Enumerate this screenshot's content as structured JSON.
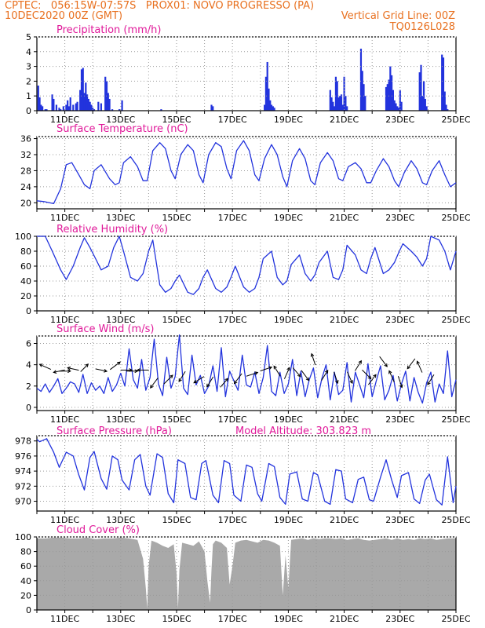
{
  "header": {
    "line1_left": "CPTEC:   056:15W-07:57S   PROX01: NOVO PROGRESSO (PA)",
    "line2_left": "10DEC2020 00Z (GMT)",
    "line2_right": "Vertical Grid Line: 00Z",
    "line3_right": "TQ0126L028",
    "model_altitude": "Model Altitude: 303.823 m"
  },
  "colors": {
    "header": "#e8701f",
    "panel_title": "#e01a9a",
    "series": "#2233dd",
    "cloud": "#a9a9a9",
    "grid": "#999999",
    "arrow": "#000000"
  },
  "x_axis": {
    "labels": [
      "11DEC",
      "13DEC",
      "15DEC",
      "17DEC",
      "19DEC",
      "21DEC",
      "23DEC",
      "25DEC"
    ],
    "label_days": [
      11,
      13,
      15,
      17,
      19,
      21,
      23,
      25
    ]
  },
  "chart_data": [
    {
      "type": "bar",
      "title": "Precipitation (mm/h)",
      "ylim": [
        0,
        5
      ],
      "yticks": [
        0,
        1,
        2,
        3,
        4,
        5
      ],
      "x_unit": "day of Dec 2020",
      "x": [
        10.05,
        10.1,
        10.15,
        10.2,
        10.3,
        10.35,
        10.55,
        10.6,
        10.7,
        10.8,
        10.85,
        10.95,
        11.05,
        11.1,
        11.15,
        11.2,
        11.3,
        11.4,
        11.45,
        11.55,
        11.6,
        11.65,
        11.7,
        11.75,
        11.8,
        11.85,
        11.9,
        11.95,
        12.0,
        12.05,
        12.2,
        12.3,
        12.45,
        12.5,
        12.55,
        12.6,
        12.7,
        12.95,
        13.05,
        14.45,
        16.25,
        16.3,
        18.15,
        18.2,
        18.25,
        18.3,
        18.35,
        18.4,
        18.45,
        18.5,
        20.5,
        20.55,
        20.6,
        20.65,
        20.7,
        20.75,
        20.8,
        20.85,
        20.9,
        20.95,
        21.0,
        21.05,
        21.1,
        21.6,
        21.65,
        21.7,
        21.75,
        22.5,
        22.55,
        22.6,
        22.65,
        22.7,
        22.75,
        22.8,
        22.85,
        22.9,
        22.95,
        23.0,
        23.05,
        23.7,
        23.75,
        23.8,
        23.85,
        23.9,
        23.95,
        24.5,
        24.55,
        24.6,
        24.65,
        24.7
      ],
      "values": [
        1.7,
        0.9,
        0.4,
        0.3,
        0.1,
        0.1,
        1.1,
        0.8,
        0.4,
        0.2,
        0.1,
        0.3,
        0.4,
        0.7,
        0.3,
        0.9,
        0.4,
        0.5,
        0.6,
        1.4,
        2.8,
        2.9,
        1.2,
        1.9,
        1.1,
        0.8,
        0.6,
        0.4,
        0.2,
        0.1,
        0.6,
        0.5,
        2.3,
        2.0,
        1.2,
        0.8,
        0.1,
        0.1,
        0.7,
        0.1,
        0.4,
        0.3,
        0.4,
        2.3,
        3.3,
        1.5,
        0.7,
        0.4,
        0.3,
        0.2,
        1.4,
        0.9,
        0.6,
        0.3,
        2.3,
        2.0,
        0.9,
        1.0,
        1.1,
        0.4,
        2.3,
        1.0,
        0.3,
        4.2,
        2.7,
        1.8,
        1.0,
        1.6,
        1.8,
        2.1,
        3.0,
        2.4,
        1.4,
        0.7,
        0.5,
        0.3,
        0.2,
        1.4,
        0.6,
        2.6,
        3.1,
        1.0,
        2.0,
        0.8,
        0.3,
        3.8,
        3.6,
        1.3,
        0.4,
        0.1
      ]
    },
    {
      "type": "line",
      "title": "Surface Temperature (nC)",
      "ylim": [
        18.5,
        36.5
      ],
      "yticks": [
        20,
        24,
        28,
        32,
        36
      ],
      "x_unit": "day of Dec 2020",
      "x": [
        10.0,
        10.25,
        10.6,
        10.85,
        11.05,
        11.25,
        11.5,
        11.7,
        11.9,
        12.05,
        12.3,
        12.6,
        12.8,
        12.95,
        13.1,
        13.35,
        13.6,
        13.8,
        13.95,
        14.15,
        14.4,
        14.6,
        14.8,
        14.95,
        15.15,
        15.4,
        15.6,
        15.8,
        15.95,
        16.15,
        16.4,
        16.6,
        16.8,
        16.95,
        17.15,
        17.4,
        17.6,
        17.8,
        17.95,
        18.15,
        18.4,
        18.6,
        18.8,
        18.95,
        19.15,
        19.4,
        19.6,
        19.8,
        19.95,
        20.15,
        20.4,
        20.6,
        20.8,
        20.95,
        21.15,
        21.4,
        21.6,
        21.8,
        21.95,
        22.15,
        22.4,
        22.6,
        22.8,
        22.95,
        23.15,
        23.4,
        23.6,
        23.8,
        23.95,
        24.15,
        24.4,
        24.6,
        24.8,
        25.0
      ],
      "values": [
        20.5,
        20.3,
        19.8,
        23.5,
        29.5,
        30.0,
        27.0,
        24.5,
        23.5,
        28.0,
        29.5,
        26.0,
        24.5,
        25.0,
        30.0,
        31.5,
        29.0,
        25.5,
        25.5,
        33.0,
        35.0,
        33.5,
        28.0,
        26.0,
        32.0,
        34.5,
        33.0,
        27.0,
        25.0,
        32.0,
        35.0,
        34.0,
        28.5,
        26.0,
        33.0,
        35.5,
        33.0,
        27.0,
        25.5,
        31.0,
        34.5,
        32.0,
        26.5,
        24.0,
        30.5,
        33.5,
        31.0,
        25.5,
        24.5,
        30.0,
        32.5,
        30.5,
        26.0,
        25.5,
        29.0,
        30.0,
        28.5,
        25.0,
        25.0,
        28.0,
        31.0,
        29.0,
        25.5,
        24.0,
        27.5,
        30.5,
        28.5,
        25.0,
        24.5,
        28.0,
        30.5,
        27.0,
        24.0,
        25.0
      ]
    },
    {
      "type": "line",
      "title": "Relative Humidity (%)",
      "ylim": [
        0,
        100
      ],
      "yticks": [
        0,
        20,
        40,
        60,
        80,
        100
      ],
      "x_unit": "day of Dec 2020",
      "x": [
        10.0,
        10.3,
        10.55,
        10.85,
        11.05,
        11.3,
        11.55,
        11.7,
        11.9,
        12.1,
        12.3,
        12.55,
        12.75,
        12.95,
        13.1,
        13.35,
        13.6,
        13.8,
        14.0,
        14.15,
        14.4,
        14.6,
        14.8,
        14.95,
        15.1,
        15.4,
        15.6,
        15.8,
        15.95,
        16.1,
        16.4,
        16.6,
        16.8,
        16.95,
        17.1,
        17.4,
        17.6,
        17.8,
        17.95,
        18.1,
        18.4,
        18.6,
        18.8,
        18.95,
        19.1,
        19.4,
        19.6,
        19.8,
        19.95,
        20.1,
        20.4,
        20.6,
        20.8,
        20.95,
        21.1,
        21.4,
        21.6,
        21.8,
        21.95,
        22.1,
        22.4,
        22.6,
        22.8,
        22.95,
        23.1,
        23.4,
        23.6,
        23.8,
        23.95,
        24.1,
        24.4,
        24.6,
        24.8,
        25.0
      ],
      "values": [
        100,
        100,
        80,
        55,
        42,
        60,
        85,
        98,
        85,
        70,
        55,
        60,
        85,
        100,
        80,
        45,
        40,
        50,
        80,
        95,
        35,
        25,
        30,
        40,
        48,
        25,
        22,
        30,
        45,
        55,
        30,
        25,
        32,
        45,
        60,
        32,
        25,
        30,
        45,
        70,
        80,
        45,
        35,
        40,
        62,
        75,
        50,
        40,
        48,
        65,
        80,
        45,
        42,
        55,
        88,
        75,
        55,
        50,
        70,
        85,
        50,
        55,
        65,
        78,
        90,
        80,
        72,
        60,
        70,
        100,
        95,
        80,
        55,
        80
      ]
    },
    {
      "type": "line",
      "title": "Surface Wind (m/s)",
      "ylim": [
        -0.3,
        6.7
      ],
      "yticks": [
        0,
        2,
        4,
        6
      ],
      "x_unit": "day of Dec 2020",
      "x": [
        10.0,
        10.15,
        10.3,
        10.45,
        10.6,
        10.75,
        10.9,
        11.05,
        11.2,
        11.35,
        11.5,
        11.65,
        11.8,
        11.95,
        12.1,
        12.25,
        12.4,
        12.55,
        12.7,
        12.85,
        13.0,
        13.15,
        13.3,
        13.45,
        13.6,
        13.75,
        13.9,
        14.05,
        14.2,
        14.35,
        14.5,
        14.65,
        14.8,
        14.95,
        15.1,
        15.25,
        15.4,
        15.55,
        15.7,
        15.85,
        16.0,
        16.15,
        16.3,
        16.45,
        16.6,
        16.75,
        16.9,
        17.05,
        17.2,
        17.35,
        17.5,
        17.65,
        17.8,
        17.95,
        18.1,
        18.25,
        18.4,
        18.55,
        18.7,
        18.85,
        19.0,
        19.15,
        19.3,
        19.45,
        19.6,
        19.75,
        19.9,
        20.05,
        20.2,
        20.35,
        20.5,
        20.65,
        20.8,
        20.95,
        21.1,
        21.25,
        21.4,
        21.55,
        21.7,
        21.85,
        22.0,
        22.15,
        22.3,
        22.45,
        22.6,
        22.75,
        22.9,
        23.05,
        23.2,
        23.35,
        23.5,
        23.65,
        23.8,
        23.95,
        24.1,
        24.25,
        24.4,
        24.55,
        24.7,
        24.85,
        25.0
      ],
      "values": [
        1.8,
        1.5,
        2.2,
        1.4,
        2.0,
        2.7,
        1.3,
        1.8,
        2.4,
        2.2,
        1.4,
        3.1,
        1.3,
        2.3,
        1.6,
        2.0,
        1.3,
        2.8,
        1.5,
        2.1,
        3.2,
        2.0,
        5.5,
        2.6,
        1.8,
        4.5,
        1.6,
        2.8,
        6.4,
        2.2,
        1.1,
        4.7,
        1.8,
        2.9,
        6.8,
        1.8,
        1.2,
        4.9,
        2.1,
        3.0,
        1.3,
        2.0,
        3.9,
        1.5,
        5.6,
        1.0,
        3.4,
        2.5,
        1.6,
        4.9,
        2.1,
        1.9,
        3.3,
        1.3,
        2.8,
        5.8,
        1.5,
        1.1,
        3.3,
        1.3,
        2.2,
        4.5,
        1.1,
        3.4,
        1.0,
        2.6,
        3.7,
        0.9,
        2.7,
        4.0,
        0.7,
        3.3,
        1.2,
        1.6,
        4.2,
        0.5,
        3.3,
        2.1,
        0.9,
        4.1,
        1.0,
        2.5,
        3.9,
        0.7,
        1.6,
        3.0,
        0.6,
        2.2,
        3.4,
        0.6,
        2.8,
        1.4,
        0.4,
        2.3,
        3.3,
        0.5,
        2.2,
        1.3,
        5.3,
        1.0,
        2.6
      ]
    },
    {
      "type": "line",
      "title": "Surface Pressure (hPa)",
      "ylim": [
        968.7,
        978.7
      ],
      "yticks": [
        970,
        972,
        974,
        976,
        978
      ],
      "x_unit": "day of Dec 2020",
      "x": [
        10.0,
        10.1,
        10.35,
        10.6,
        10.8,
        11.05,
        11.3,
        11.5,
        11.7,
        11.9,
        12.05,
        12.3,
        12.5,
        12.7,
        12.9,
        13.05,
        13.3,
        13.5,
        13.7,
        13.9,
        14.05,
        14.3,
        14.5,
        14.7,
        14.9,
        15.05,
        15.3,
        15.5,
        15.7,
        15.9,
        16.05,
        16.3,
        16.5,
        16.7,
        16.9,
        17.05,
        17.3,
        17.5,
        17.7,
        17.9,
        18.05,
        18.3,
        18.5,
        18.7,
        18.9,
        19.05,
        19.3,
        19.5,
        19.7,
        19.9,
        20.05,
        20.3,
        20.5,
        20.7,
        20.9,
        21.05,
        21.3,
        21.5,
        21.7,
        21.9,
        22.05,
        22.3,
        22.5,
        22.7,
        22.9,
        23.05,
        23.3,
        23.5,
        23.7,
        23.9,
        24.05,
        24.3,
        24.5,
        24.7,
        24.9,
        25.0
      ],
      "values": [
        978.2,
        977.9,
        978.3,
        976.5,
        974.5,
        976.5,
        976.0,
        973.5,
        971.5,
        975.8,
        976.6,
        973.0,
        971.6,
        976.0,
        975.5,
        972.8,
        971.5,
        975.5,
        976.2,
        972.0,
        970.8,
        976.3,
        975.8,
        971.0,
        969.8,
        975.5,
        975.0,
        970.5,
        970.2,
        975.0,
        975.4,
        970.8,
        969.8,
        975.4,
        975.0,
        970.8,
        970.0,
        974.8,
        974.5,
        971.0,
        970.0,
        975.0,
        974.6,
        970.5,
        969.6,
        973.6,
        973.9,
        970.3,
        970.0,
        973.8,
        973.5,
        970.0,
        969.6,
        974.2,
        974.0,
        970.3,
        969.8,
        972.9,
        973.2,
        970.2,
        970.0,
        973.2,
        975.5,
        972.8,
        970.5,
        973.4,
        973.8,
        970.3,
        969.7,
        972.8,
        973.6,
        970.2,
        969.5,
        975.9,
        969.8,
        972.0
      ]
    },
    {
      "type": "area",
      "title": "Cloud Cover (%)",
      "ylim": [
        0,
        100
      ],
      "yticks": [
        0,
        20,
        40,
        60,
        80,
        100
      ],
      "x_unit": "day of Dec 2020",
      "x": [
        10.0,
        10.3,
        10.6,
        10.9,
        11.2,
        11.5,
        11.8,
        12.1,
        12.4,
        12.7,
        13.0,
        13.3,
        13.6,
        13.8,
        13.9,
        13.95,
        14.0,
        14.1,
        14.3,
        14.5,
        14.7,
        14.9,
        15.0,
        15.05,
        15.1,
        15.2,
        15.4,
        15.6,
        15.8,
        16.0,
        16.1,
        16.2,
        16.25,
        16.3,
        16.4,
        16.6,
        16.8,
        16.9,
        17.0,
        17.1,
        17.3,
        17.5,
        17.7,
        17.9,
        18.1,
        18.3,
        18.5,
        18.7,
        18.8,
        18.9,
        19.0,
        19.1,
        19.3,
        19.5,
        19.7,
        19.9,
        20.1,
        20.3,
        20.5,
        20.7,
        20.9,
        21.1,
        21.3,
        21.5,
        21.7,
        21.9,
        22.1,
        22.3,
        22.5,
        22.7,
        22.9,
        23.1,
        23.3,
        23.5,
        23.7,
        23.9,
        24.1,
        24.3,
        24.5,
        24.7,
        24.9,
        25.0
      ],
      "values": [
        98,
        98,
        99,
        99,
        98,
        98,
        99,
        97,
        98,
        98,
        99,
        98,
        96,
        70,
        30,
        2,
        60,
        95,
        92,
        88,
        85,
        90,
        50,
        2,
        55,
        92,
        90,
        88,
        94,
        80,
        40,
        10,
        55,
        90,
        95,
        92,
        85,
        35,
        60,
        92,
        95,
        96,
        94,
        92,
        96,
        95,
        92,
        88,
        20,
        75,
        30,
        96,
        97,
        98,
        96,
        98,
        97,
        98,
        98,
        97,
        98,
        96,
        97,
        98,
        96,
        95,
        96,
        97,
        98,
        96,
        98,
        96,
        97,
        96,
        98,
        97,
        98,
        96,
        97,
        98,
        98,
        98
      ]
    },
    {
      "type": "vector",
      "title": "Surface Wind direction arrows",
      "note": "unit vectors (u, v) at arrow positions",
      "x": [
        10.3,
        10.8,
        11.0,
        11.3,
        11.7,
        12.3,
        12.8,
        13.2,
        13.4,
        13.8,
        14.2,
        14.7,
        15.2,
        15.8,
        16.2,
        16.7,
        17.2,
        17.7,
        18.2,
        18.6,
        18.95,
        19.3,
        19.6,
        19.9,
        20.3,
        20.7,
        21.2,
        21.5,
        21.8,
        22.0,
        22.4,
        22.7,
        23.0,
        23.4,
        23.7,
        24.1
      ],
      "y": [
        3.8,
        3.4,
        3.4,
        3.6,
        3.7,
        3.5,
        3.9,
        3.5,
        3.4,
        3.5,
        2.3,
        2.6,
        2.9,
        2.6,
        2.4,
        2.3,
        2.7,
        3.1,
        3.6,
        3.4,
        3.2,
        3.3,
        3.0,
        4.5,
        3.0,
        2.8,
        2.8,
        3.9,
        3.1,
        2.6,
        4.3,
        2.9,
        2.4,
        4.1,
        3.8,
        2.6
      ],
      "u": [
        -0.9,
        -0.9,
        0.9,
        -0.9,
        0.6,
        0.9,
        0.8,
        0.9,
        0.9,
        -0.9,
        -0.6,
        0.7,
        -0.5,
        -0.8,
        -0.5,
        0.6,
        -0.6,
        0.9,
        0.9,
        -0.5,
        0.4,
        0.6,
        0.6,
        -0.3,
        0.5,
        0.3,
        0.4,
        0.5,
        0.7,
        0.6,
        0.6,
        -0.4,
        0.3,
        -0.6,
        -0.4,
        -0.5
      ],
      "v": [
        0.4,
        -0.2,
        0.0,
        0.2,
        0.6,
        -0.2,
        0.6,
        0.0,
        0.0,
        0.0,
        -0.8,
        0.7,
        -0.8,
        -0.5,
        -0.8,
        0.7,
        -0.8,
        0.3,
        0.3,
        0.8,
        0.9,
        -0.7,
        -0.8,
        0.9,
        0.8,
        -0.9,
        -0.9,
        0.8,
        -0.7,
        0.8,
        -0.8,
        0.9,
        -0.9,
        -0.8,
        0.9,
        -0.8
      ]
    }
  ]
}
